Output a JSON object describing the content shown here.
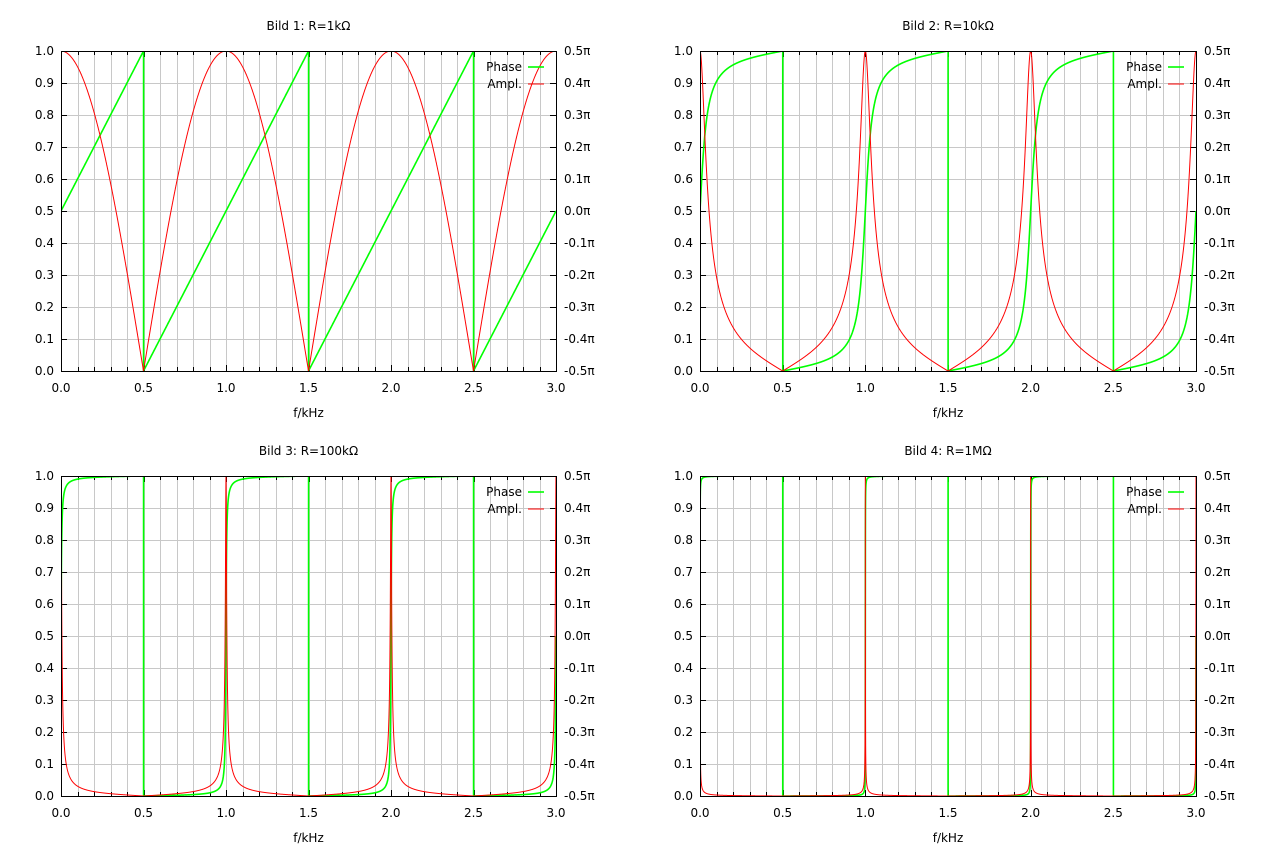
{
  "colors": {
    "phase": "#00ff00",
    "amplitude": "#ff0000",
    "grid": "#c8c8c8",
    "axis": "#000000",
    "background": "#ffffff"
  },
  "chart_data": [
    {
      "type": "line",
      "title": "Bild 1: R=1kΩ",
      "xlabel": "f/kHz",
      "ylabel": "",
      "y2label": "",
      "xlim": [
        0,
        3
      ],
      "ylim": [
        0,
        1
      ],
      "y2lim": [
        -0.5,
        0.5
      ],
      "x_ticks": [
        "0.0",
        "0.5",
        "1.0",
        "1.5",
        "2.0",
        "2.5",
        "3.0"
      ],
      "y_ticks": [
        "0.0",
        "0.1",
        "0.2",
        "0.3",
        "0.4",
        "0.5",
        "0.6",
        "0.7",
        "0.8",
        "0.9",
        "1.0"
      ],
      "y2_ticks": [
        "-0.5π",
        "-0.4π",
        "-0.3π",
        "-0.2π",
        "-0.1π",
        "0.0π",
        "0.1π",
        "0.2π",
        "0.3π",
        "0.4π",
        "0.5π"
      ],
      "grid": true,
      "legend_position": "top-right",
      "resistance_kohm": 1,
      "series": [
        {
          "name": "Phase",
          "color": "#00ff00",
          "axis": "y2",
          "period_khz": 1,
          "formula": "atan(R*sin(2pi f)/(1+cos(2pi f)))/pi"
        },
        {
          "name": "Ampl.",
          "color": "#ff0000",
          "axis": "y",
          "period_khz": 1,
          "formula": "|cos(pi f)| / sqrt(cos^2(pi f)+R^2 sin^2(pi f))"
        }
      ]
    },
    {
      "type": "line",
      "title": "Bild 2: R=10kΩ",
      "xlabel": "f/kHz",
      "ylabel": "",
      "y2label": "",
      "xlim": [
        0,
        3
      ],
      "ylim": [
        0,
        1
      ],
      "y2lim": [
        -0.5,
        0.5
      ],
      "x_ticks": [
        "0.0",
        "0.5",
        "1.0",
        "1.5",
        "2.0",
        "2.5",
        "3.0"
      ],
      "y_ticks": [
        "0.0",
        "0.1",
        "0.2",
        "0.3",
        "0.4",
        "0.5",
        "0.6",
        "0.7",
        "0.8",
        "0.9",
        "1.0"
      ],
      "y2_ticks": [
        "-0.5π",
        "-0.4π",
        "-0.3π",
        "-0.2π",
        "-0.1π",
        "0.0π",
        "0.1π",
        "0.2π",
        "0.3π",
        "0.4π",
        "0.5π"
      ],
      "grid": true,
      "legend_position": "top-right",
      "resistance_kohm": 10,
      "series": [
        {
          "name": "Phase",
          "color": "#00ff00",
          "axis": "y2",
          "period_khz": 1,
          "formula": "atan(R*sin(2pi f)/(1+cos(2pi f)))/pi"
        },
        {
          "name": "Ampl.",
          "color": "#ff0000",
          "axis": "y",
          "period_khz": 1,
          "formula": "|cos(pi f)| / sqrt(cos^2(pi f)+R^2 sin^2(pi f))"
        }
      ]
    },
    {
      "type": "line",
      "title": "Bild 3: R=100kΩ",
      "xlabel": "f/kHz",
      "ylabel": "",
      "y2label": "",
      "xlim": [
        0,
        3
      ],
      "ylim": [
        0,
        1
      ],
      "y2lim": [
        -0.5,
        0.5
      ],
      "x_ticks": [
        "0.0",
        "0.5",
        "1.0",
        "1.5",
        "2.0",
        "2.5",
        "3.0"
      ],
      "y_ticks": [
        "0.0",
        "0.1",
        "0.2",
        "0.3",
        "0.4",
        "0.5",
        "0.6",
        "0.7",
        "0.8",
        "0.9",
        "1.0"
      ],
      "y2_ticks": [
        "-0.5π",
        "-0.4π",
        "-0.3π",
        "-0.2π",
        "-0.1π",
        "0.0π",
        "0.1π",
        "0.2π",
        "0.3π",
        "0.4π",
        "0.5π"
      ],
      "grid": true,
      "legend_position": "top-right",
      "resistance_kohm": 100,
      "series": [
        {
          "name": "Phase",
          "color": "#00ff00",
          "axis": "y2",
          "period_khz": 1,
          "formula": "atan(R*sin(2pi f)/(1+cos(2pi f)))/pi"
        },
        {
          "name": "Ampl.",
          "color": "#ff0000",
          "axis": "y",
          "period_khz": 1,
          "formula": "|cos(pi f)| / sqrt(cos^2(pi f)+R^2 sin^2(pi f))"
        }
      ]
    },
    {
      "type": "line",
      "title": "Bild 4: R=1MΩ",
      "xlabel": "f/kHz",
      "ylabel": "",
      "y2label": "",
      "xlim": [
        0,
        3
      ],
      "ylim": [
        0,
        1
      ],
      "y2lim": [
        -0.5,
        0.5
      ],
      "x_ticks": [
        "0.0",
        "0.5",
        "1.0",
        "1.5",
        "2.0",
        "2.5",
        "3.0"
      ],
      "y_ticks": [
        "0.0",
        "0.1",
        "0.2",
        "0.3",
        "0.4",
        "0.5",
        "0.6",
        "0.7",
        "0.8",
        "0.9",
        "1.0"
      ],
      "y2_ticks": [
        "-0.5π",
        "-0.4π",
        "-0.3π",
        "-0.2π",
        "-0.1π",
        "0.0π",
        "0.1π",
        "0.2π",
        "0.3π",
        "0.4π",
        "0.5π"
      ],
      "grid": true,
      "legend_position": "top-right",
      "resistance_kohm": 1000,
      "series": [
        {
          "name": "Phase",
          "color": "#00ff00",
          "axis": "y2",
          "period_khz": 1,
          "formula": "atan(R*sin(2pi f)/(1+cos(2pi f)))/pi"
        },
        {
          "name": "Ampl.",
          "color": "#ff0000",
          "axis": "y",
          "period_khz": 1,
          "formula": "|cos(pi f)| / sqrt(cos^2(pi f)+R^2 sin^2(pi f))"
        }
      ]
    }
  ]
}
